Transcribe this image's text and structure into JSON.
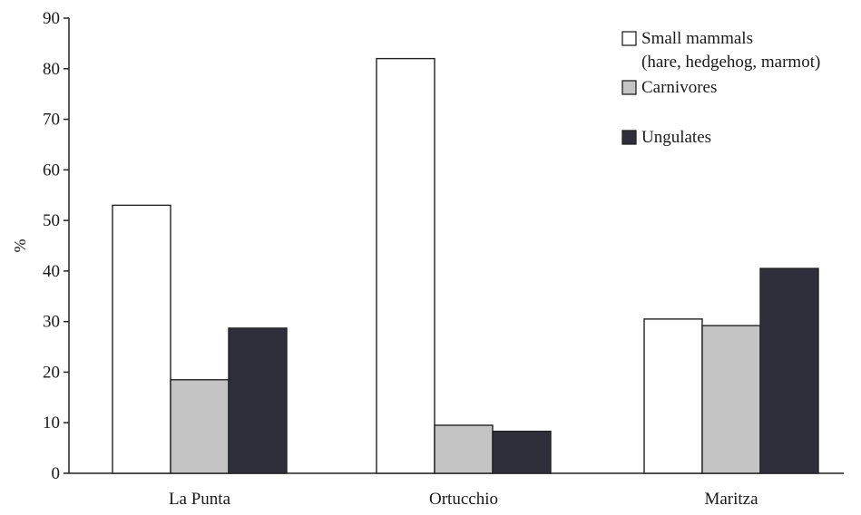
{
  "chart_data": {
    "type": "bar",
    "title": "",
    "xlabel": "",
    "ylabel": "%",
    "ylim": [
      0,
      90
    ],
    "yticks": [
      0,
      10,
      20,
      30,
      40,
      50,
      60,
      70,
      80,
      90
    ],
    "categories": [
      "La Punta",
      "Ortucchio",
      "Maritza"
    ],
    "series": [
      {
        "name": "Small mammals (hare, hedgehog, marmot)",
        "values": [
          53,
          82,
          30.5
        ],
        "color": "#ffffff"
      },
      {
        "name": "Carnivores",
        "values": [
          18.5,
          9.5,
          29.2
        ],
        "color": "#c4c4c4"
      },
      {
        "name": "Ungulates",
        "values": [
          28.7,
          8.3,
          40.5
        ],
        "color": "#2e2f3a"
      }
    ],
    "legend": {
      "placement": "top-right",
      "entries": [
        {
          "lines": [
            "Small mammals",
            "(hare, hedgehog, marmot)"
          ],
          "color": "#ffffff"
        },
        {
          "lines": [
            "Carnivores"
          ],
          "color": "#c4c4c4"
        },
        {
          "lines": [
            "Ungulates"
          ],
          "color": "#2e2f3a"
        }
      ]
    },
    "grid": false
  }
}
